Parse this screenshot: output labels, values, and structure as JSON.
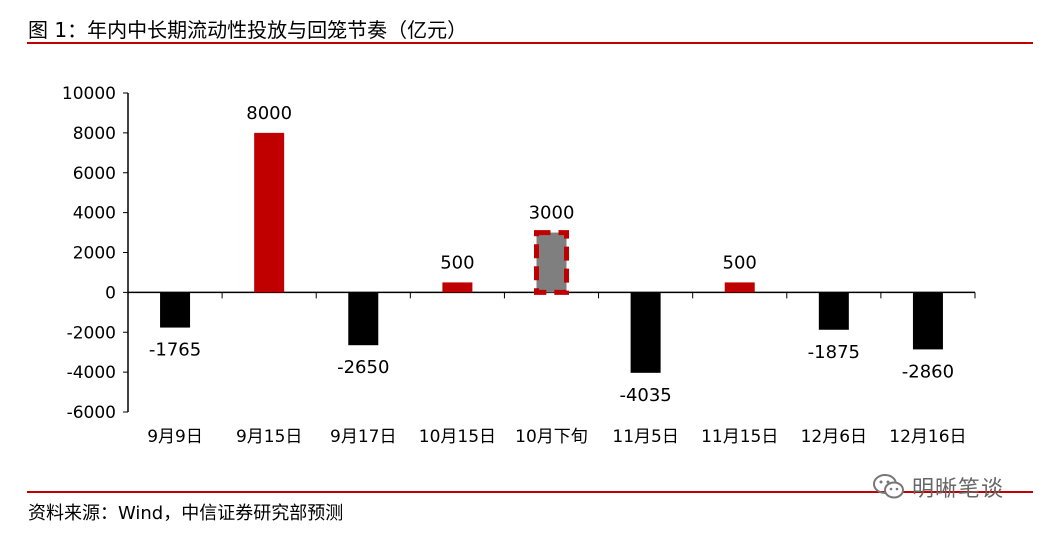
{
  "header": {
    "title": "图 1：年内中长期流动性投放与回笼节奏（亿元）"
  },
  "footer": {
    "source": "资料来源：Wind，中信证券研究部预测"
  },
  "watermark": {
    "text": "明晰笔谈",
    "icon": "wechat-icon"
  },
  "colors": {
    "positive": "#c00000",
    "negative": "#000000",
    "forecast": "#7f7f7f",
    "forecast_border": "#c00000",
    "rule": "#c00000"
  },
  "chart_data": {
    "type": "bar",
    "title": "年内中长期流动性投放与回笼节奏（亿元）",
    "categories": [
      "9月9日",
      "9月15日",
      "9月17日",
      "10月15日",
      "10月下旬",
      "11月5日",
      "11月15日",
      "12月6日",
      "12月16日"
    ],
    "values": [
      -1765,
      8000,
      -2650,
      500,
      3000,
      -4035,
      500,
      -1875,
      -2860
    ],
    "data_labels": [
      "-1765",
      "8000",
      "-2650",
      "500",
      "3000",
      "-4035",
      "500",
      "-1875",
      "-2860"
    ],
    "forecast": [
      false,
      false,
      false,
      false,
      true,
      false,
      false,
      false,
      false
    ],
    "y_ticks": [
      "10000",
      "8000",
      "6000",
      "4000",
      "2000",
      "0",
      "-2000",
      "-4000",
      "-6000"
    ],
    "ylim": [
      -6000,
      10000
    ],
    "xlabel": "",
    "ylabel": "",
    "grid": false
  }
}
